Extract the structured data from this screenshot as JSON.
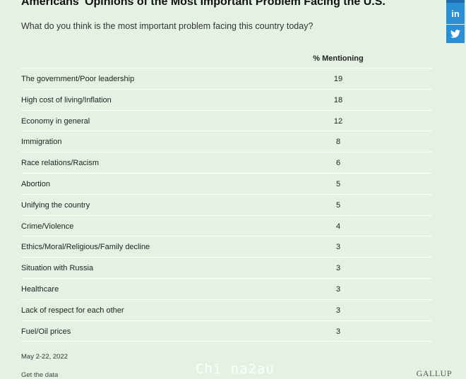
{
  "title": "Americans' Opinions of the Most Important Problem Facing the U.S.",
  "subtitle": "What do you think is the most important problem facing this country today?",
  "column_header": "% Mentioning",
  "rows": [
    {
      "label": "The government/Poor leadership",
      "value": "19"
    },
    {
      "label": "High cost of living/Inflation",
      "value": "18"
    },
    {
      "label": "Economy in general",
      "value": "12"
    },
    {
      "label": "Immigration",
      "value": "8"
    },
    {
      "label": "Race relations/Racism",
      "value": "6"
    },
    {
      "label": "Abortion",
      "value": "5"
    },
    {
      "label": "Unifying the country",
      "value": "5"
    },
    {
      "label": "Crime/Violence",
      "value": "4"
    },
    {
      "label": "Ethics/Moral/Religious/Family decline",
      "value": "3"
    },
    {
      "label": "Situation with Russia",
      "value": "3"
    },
    {
      "label": "Healthcare",
      "value": "3"
    },
    {
      "label": "Lack of respect for each other",
      "value": "3"
    },
    {
      "label": "Fuel/Oil prices",
      "value": "3"
    }
  ],
  "date": "May 2-22, 2022",
  "get_data_link": "Get the data",
  "source_logo": "GALLUP",
  "watermark": "Chi na2au",
  "social": {
    "linkedin": "in",
    "twitter_icon": "twitter-bird"
  }
}
